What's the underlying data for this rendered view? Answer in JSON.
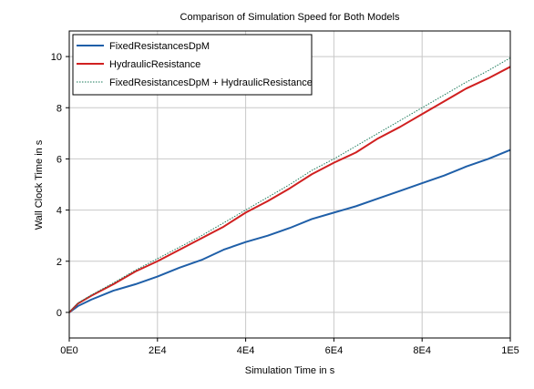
{
  "chart_data": {
    "type": "line",
    "title": "Comparison of Simulation Speed for Both Models",
    "xlabel": "Simulation Time in s",
    "ylabel": "Wall Clock Time in s",
    "xlim": [
      0,
      100000
    ],
    "ylim": [
      -1,
      11
    ],
    "x_ticks": [
      0,
      20000,
      40000,
      60000,
      80000,
      100000
    ],
    "x_tick_labels": [
      "0E0",
      "2E4",
      "4E4",
      "6E4",
      "8E4",
      "1E5"
    ],
    "y_ticks": [
      0,
      2,
      4,
      6,
      8,
      10
    ],
    "y_tick_labels": [
      "0",
      "2",
      "4",
      "6",
      "8",
      "10"
    ],
    "grid": true,
    "legend_position": "top-left",
    "x": [
      0,
      2000,
      5000,
      10000,
      15000,
      20000,
      25000,
      30000,
      35000,
      40000,
      45000,
      50000,
      55000,
      60000,
      65000,
      70000,
      75000,
      80000,
      85000,
      90000,
      95000,
      100000
    ],
    "series": [
      {
        "name": "FixedResistancesDpM",
        "color": "#1f5fa8",
        "line_style": "solid",
        "values": [
          0,
          0.25,
          0.5,
          0.85,
          1.1,
          1.4,
          1.75,
          2.05,
          2.45,
          2.75,
          3.0,
          3.3,
          3.65,
          3.9,
          4.15,
          4.45,
          4.75,
          5.05,
          5.35,
          5.7,
          6.0,
          6.35
        ]
      },
      {
        "name": "HydraulicResistance",
        "color": "#d02020",
        "line_style": "solid",
        "values": [
          0,
          0.35,
          0.65,
          1.1,
          1.6,
          2.0,
          2.45,
          2.9,
          3.35,
          3.9,
          4.35,
          4.85,
          5.4,
          5.85,
          6.25,
          6.8,
          7.25,
          7.75,
          8.25,
          8.75,
          9.15,
          9.6
        ]
      },
      {
        "name": "FixedResistancesDpM + HydraulicResistance",
        "color": "#1a7a5a",
        "line_style": "dotted",
        "values": [
          0,
          0.37,
          0.68,
          1.15,
          1.65,
          2.1,
          2.55,
          3.0,
          3.5,
          4.0,
          4.5,
          5.0,
          5.55,
          6.0,
          6.5,
          7.0,
          7.5,
          8.0,
          8.5,
          9.0,
          9.45,
          9.95
        ]
      }
    ]
  }
}
